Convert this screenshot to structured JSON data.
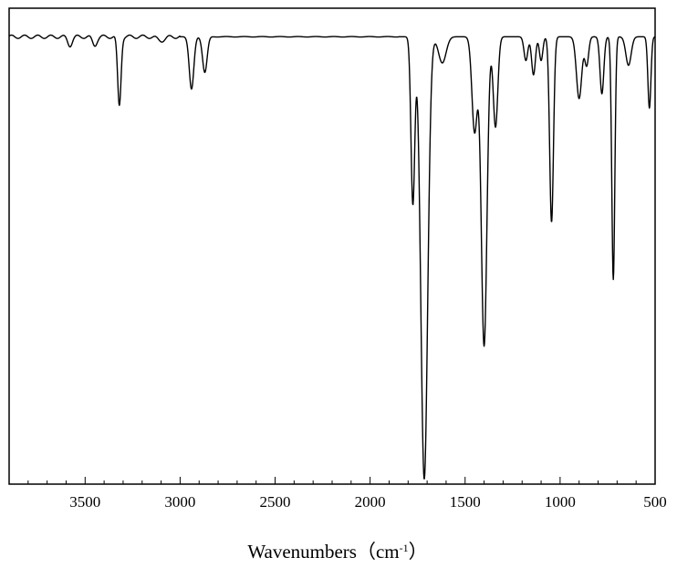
{
  "chart_data": {
    "type": "line",
    "title": "",
    "xlabel": "Wavenumbers（cm",
    "xlabel_sup": "-1",
    "xlabel_close": "）",
    "ylabel": "",
    "x_reversed": true,
    "xlim": [
      3900,
      500
    ],
    "ylim": [
      0,
      100
    ],
    "x_ticks": [
      3500,
      3000,
      2500,
      2000,
      1500,
      1000,
      500
    ],
    "x_tick_labels": [
      "3500",
      "3000",
      "2500",
      "2000",
      "1500",
      "1000",
      "500"
    ],
    "y_ticks_shown": false,
    "grid": false,
    "line_color": "#000000",
    "baseline": 94,
    "peaks": [
      {
        "x": 3580,
        "depth": 1.8,
        "width": 12
      },
      {
        "x": 3450,
        "depth": 1.8,
        "width": 12
      },
      {
        "x": 3320,
        "depth": 14.5,
        "width": 9
      },
      {
        "x": 3100,
        "depth": 0.8,
        "width": 20
      },
      {
        "x": 2940,
        "depth": 11,
        "width": 12
      },
      {
        "x": 2870,
        "depth": 7.5,
        "width": 12
      },
      {
        "x": 1775,
        "depth": 35,
        "width": 10
      },
      {
        "x": 1715,
        "depth": 93,
        "width": 18
      },
      {
        "x": 1620,
        "depth": 5.5,
        "width": 20
      },
      {
        "x": 1450,
        "depth": 20,
        "width": 14
      },
      {
        "x": 1400,
        "depth": 65,
        "width": 15
      },
      {
        "x": 1340,
        "depth": 19,
        "width": 12
      },
      {
        "x": 1180,
        "depth": 5,
        "width": 10
      },
      {
        "x": 1140,
        "depth": 8,
        "width": 10
      },
      {
        "x": 1100,
        "depth": 5,
        "width": 9
      },
      {
        "x": 1045,
        "depth": 39,
        "width": 10
      },
      {
        "x": 900,
        "depth": 13,
        "width": 14
      },
      {
        "x": 860,
        "depth": 6,
        "width": 10
      },
      {
        "x": 780,
        "depth": 12,
        "width": 10
      },
      {
        "x": 720,
        "depth": 51,
        "width": 8
      },
      {
        "x": 640,
        "depth": 6,
        "width": 14
      },
      {
        "x": 530,
        "depth": 15,
        "width": 8
      }
    ]
  }
}
